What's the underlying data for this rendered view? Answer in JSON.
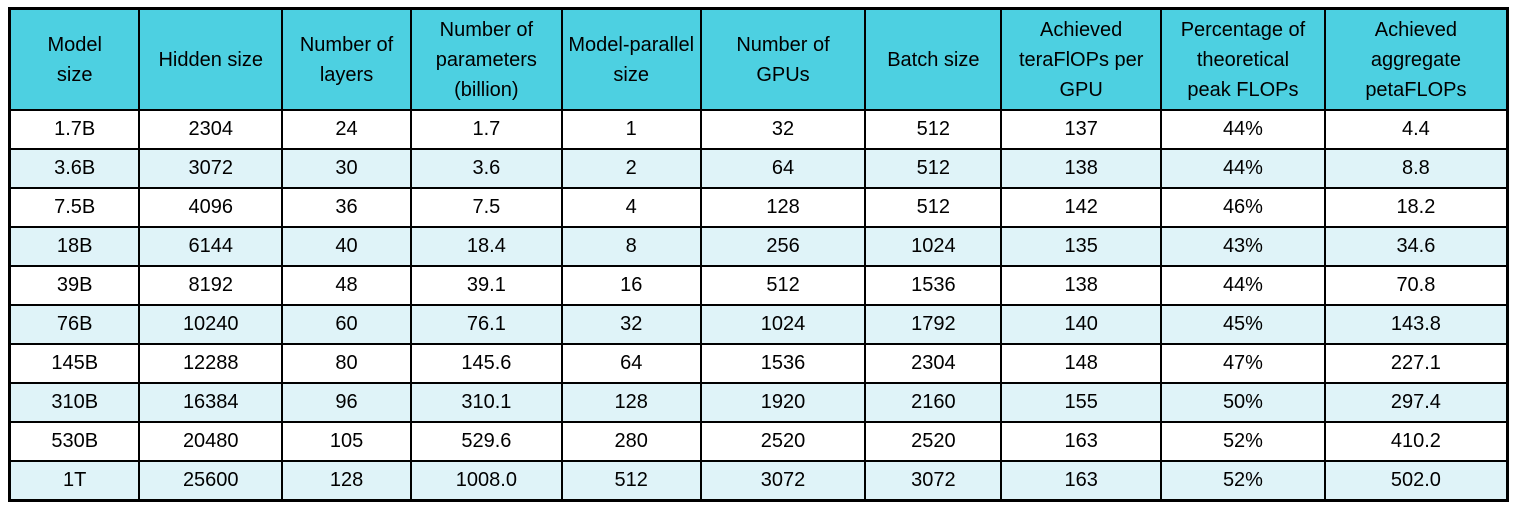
{
  "colors": {
    "header_bg": "#4DD0E1",
    "row_bg": "#FFFFFF",
    "row_alt_bg": "#DFF3F8",
    "border": "#000000",
    "text": "#000000"
  },
  "header": {
    "labels_display": [
      "Model\nsize",
      "Hidden size",
      "Number of\nlayers",
      "Number of\nparameters\n(billion)",
      "Model-parallel\nsize",
      "Number of\nGPUs",
      "Batch size",
      "Achieved\nteraFlOPs per\nGPU",
      "Percentage of\ntheoretical\npeak FLOPs",
      "Achieved\naggregate\npetaFLOPs"
    ]
  },
  "chart_data": {
    "type": "table",
    "title": "",
    "columns": [
      "Model size",
      "Hidden size",
      "Number of layers",
      "Number of parameters (billion)",
      "Model-parallel size",
      "Number of GPUs",
      "Batch size",
      "Achieved teraFlOPs per GPU",
      "Percentage of theoretical peak FLOPs",
      "Achieved aggregate petaFLOPs"
    ],
    "rows": [
      [
        "1.7B",
        "2304",
        "24",
        "1.7",
        "1",
        "32",
        "512",
        "137",
        "44%",
        "4.4"
      ],
      [
        "3.6B",
        "3072",
        "30",
        "3.6",
        "2",
        "64",
        "512",
        "138",
        "44%",
        "8.8"
      ],
      [
        "7.5B",
        "4096",
        "36",
        "7.5",
        "4",
        "128",
        "512",
        "142",
        "46%",
        "18.2"
      ],
      [
        "18B",
        "6144",
        "40",
        "18.4",
        "8",
        "256",
        "1024",
        "135",
        "43%",
        "34.6"
      ],
      [
        "39B",
        "8192",
        "48",
        "39.1",
        "16",
        "512",
        "1536",
        "138",
        "44%",
        "70.8"
      ],
      [
        "76B",
        "10240",
        "60",
        "76.1",
        "32",
        "1024",
        "1792",
        "140",
        "45%",
        "143.8"
      ],
      [
        "145B",
        "12288",
        "80",
        "145.6",
        "64",
        "1536",
        "2304",
        "148",
        "47%",
        "227.1"
      ],
      [
        "310B",
        "16384",
        "96",
        "310.1",
        "128",
        "1920",
        "2160",
        "155",
        "50%",
        "297.4"
      ],
      [
        "530B",
        "20480",
        "105",
        "529.6",
        "280",
        "2520",
        "2520",
        "163",
        "52%",
        "410.2"
      ],
      [
        "1T",
        "25600",
        "128",
        "1008.0",
        "512",
        "3072",
        "3072",
        "163",
        "52%",
        "502.0"
      ]
    ]
  }
}
